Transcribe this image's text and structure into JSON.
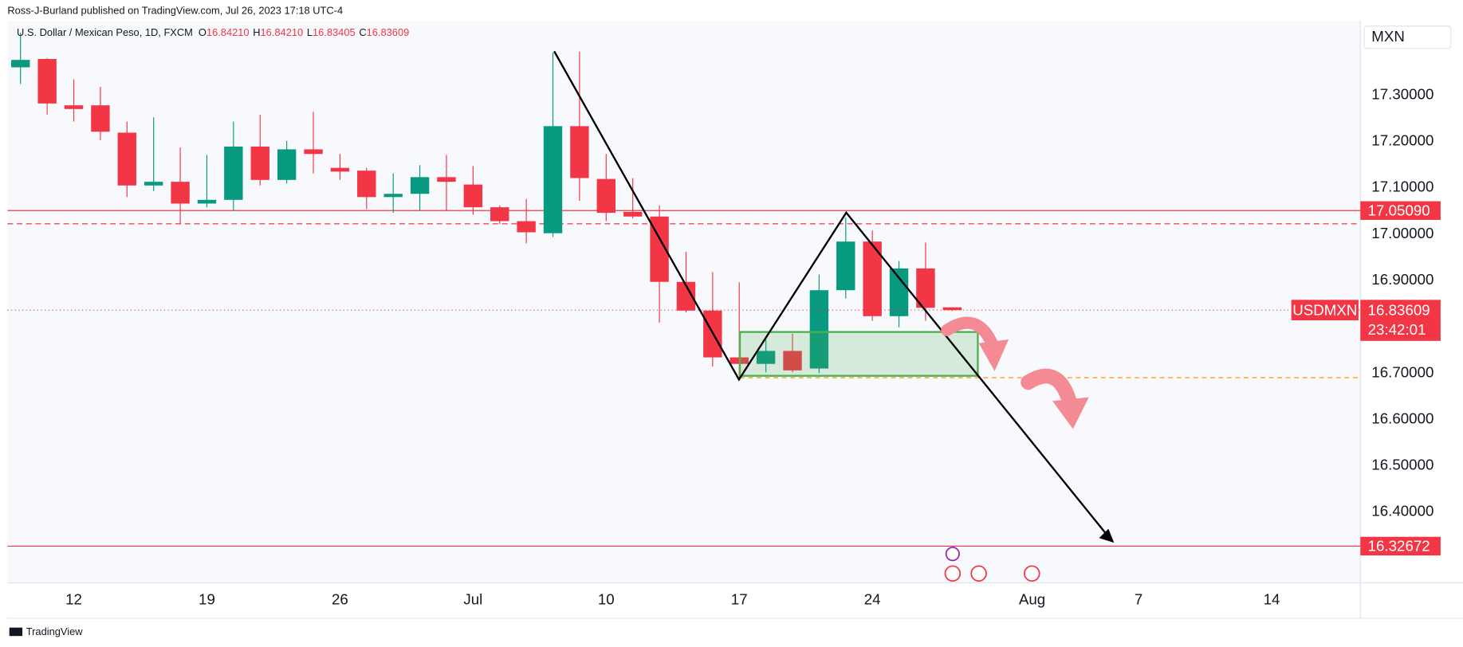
{
  "chart_data": {
    "type": "candlestick",
    "publisher": "Ross-J-Burland published on TradingView.com, Jul 26, 2023 17:18 UTC-4",
    "title": "U.S. Dollar / Mexican Peso, 1D, FXCM",
    "ohlc_labels": [
      {
        "key": "O",
        "label": "16.84210"
      },
      {
        "key": "H",
        "label": "16.84210"
      },
      {
        "key": "L",
        "label": "16.83405"
      },
      {
        "key": "C",
        "label": "16.83609"
      }
    ],
    "currency": "MXN",
    "symbol": "USDMXN",
    "countdown": "23:42:01",
    "footer": "TradingView",
    "up_color": "#089981",
    "down_color": "#f23645",
    "x": [
      "2023-06-08",
      "2023-06-09",
      "2023-06-12",
      "2023-06-13",
      "2023-06-14",
      "2023-06-15",
      "2023-06-16",
      "2023-06-19",
      "2023-06-20",
      "2023-06-21",
      "2023-06-22",
      "2023-06-23",
      "2023-06-26",
      "2023-06-27",
      "2023-06-28",
      "2023-06-29",
      "2023-06-30",
      "2023-07-03",
      "2023-07-04",
      "2023-07-05",
      "2023-07-06",
      "2023-07-07",
      "2023-07-10",
      "2023-07-11",
      "2023-07-12",
      "2023-07-13",
      "2023-07-14",
      "2023-07-17",
      "2023-07-18",
      "2023-07-19",
      "2023-07-20",
      "2023-07-21",
      "2023-07-24",
      "2023-07-25",
      "2023-07-26",
      "2023-07-27"
    ],
    "open": [
      17.36,
      17.378,
      17.278,
      17.278,
      17.219,
      17.105,
      17.113,
      17.066,
      17.074,
      17.189,
      17.117,
      17.183,
      17.143,
      17.137,
      17.08,
      17.087,
      17.123,
      17.107,
      17.058,
      17.028,
      17.002,
      17.233,
      17.119,
      17.048,
      17.038,
      16.897,
      16.835,
      16.734,
      16.72,
      16.748,
      16.71,
      16.879,
      16.984,
      16.823,
      16.926,
      16.8421
    ],
    "high": [
      17.435,
      17.38,
      17.334,
      17.318,
      17.243,
      17.252,
      17.187,
      17.171,
      17.243,
      17.258,
      17.201,
      17.264,
      17.173,
      17.143,
      17.131,
      17.149,
      17.171,
      17.147,
      17.062,
      17.076,
      17.392,
      17.394,
      17.173,
      17.121,
      17.062,
      16.962,
      16.918,
      16.896,
      16.773,
      16.785,
      16.913,
      17.036,
      17.008,
      16.942,
      16.982,
      16.8421
    ],
    "low": [
      17.324,
      17.258,
      17.243,
      17.203,
      17.08,
      17.093,
      17.022,
      17.058,
      17.05,
      17.105,
      17.109,
      17.131,
      17.117,
      17.054,
      17.046,
      17.05,
      17.05,
      17.042,
      17.022,
      16.98,
      16.994,
      17.072,
      17.028,
      17.034,
      16.809,
      16.831,
      16.714,
      16.69,
      16.702,
      16.702,
      16.7,
      16.861,
      16.813,
      16.799,
      16.813,
      16.83405
    ],
    "close": [
      17.376,
      17.282,
      17.27,
      17.221,
      17.105,
      17.113,
      17.066,
      17.074,
      17.189,
      17.117,
      17.183,
      17.173,
      17.135,
      17.08,
      17.087,
      17.123,
      17.113,
      17.058,
      17.028,
      17.004,
      17.233,
      17.121,
      17.046,
      17.038,
      16.897,
      16.835,
      16.734,
      16.72,
      16.748,
      16.706,
      16.879,
      16.984,
      16.823,
      16.926,
      16.841,
      16.83609
    ],
    "ylim": [
      16.2475,
      17.461
    ],
    "yticks": [
      {
        "value": 17.3,
        "label": "17.30000"
      },
      {
        "value": 17.2,
        "label": "17.20000"
      },
      {
        "value": 17.1,
        "label": "17.10000"
      },
      {
        "value": 17.0,
        "label": "17.00000"
      },
      {
        "value": 16.9,
        "label": "16.90000"
      },
      {
        "value": 16.8,
        "label": "16.80000"
      },
      {
        "value": 16.7,
        "label": "16.70000"
      },
      {
        "value": 16.6,
        "label": "16.60000"
      },
      {
        "value": 16.5,
        "label": "16.50000"
      },
      {
        "value": 16.4,
        "label": "16.40000"
      }
    ],
    "xticks": [
      {
        "value": "2023-06-12",
        "label": "12"
      },
      {
        "value": "2023-06-19",
        "label": "19"
      },
      {
        "value": "2023-06-26",
        "label": "26"
      },
      {
        "value": "2023-07-03",
        "label": "Jul"
      },
      {
        "value": "2023-07-10",
        "label": "10"
      },
      {
        "value": "2023-07-17",
        "label": "17"
      },
      {
        "value": "2023-07-24",
        "label": "24"
      },
      {
        "value": "2023-08-01",
        "label": "Aug"
      },
      {
        "value": "2023-08-07",
        "label": "7"
      },
      {
        "value": "2023-08-14",
        "label": "14"
      }
    ],
    "levels": [
      {
        "value": 17.0509,
        "label": "17.05090",
        "color": "#f23645"
      },
      {
        "value": 16.32672,
        "label": "16.32672",
        "color": "#f23645"
      }
    ],
    "grid": false
  }
}
